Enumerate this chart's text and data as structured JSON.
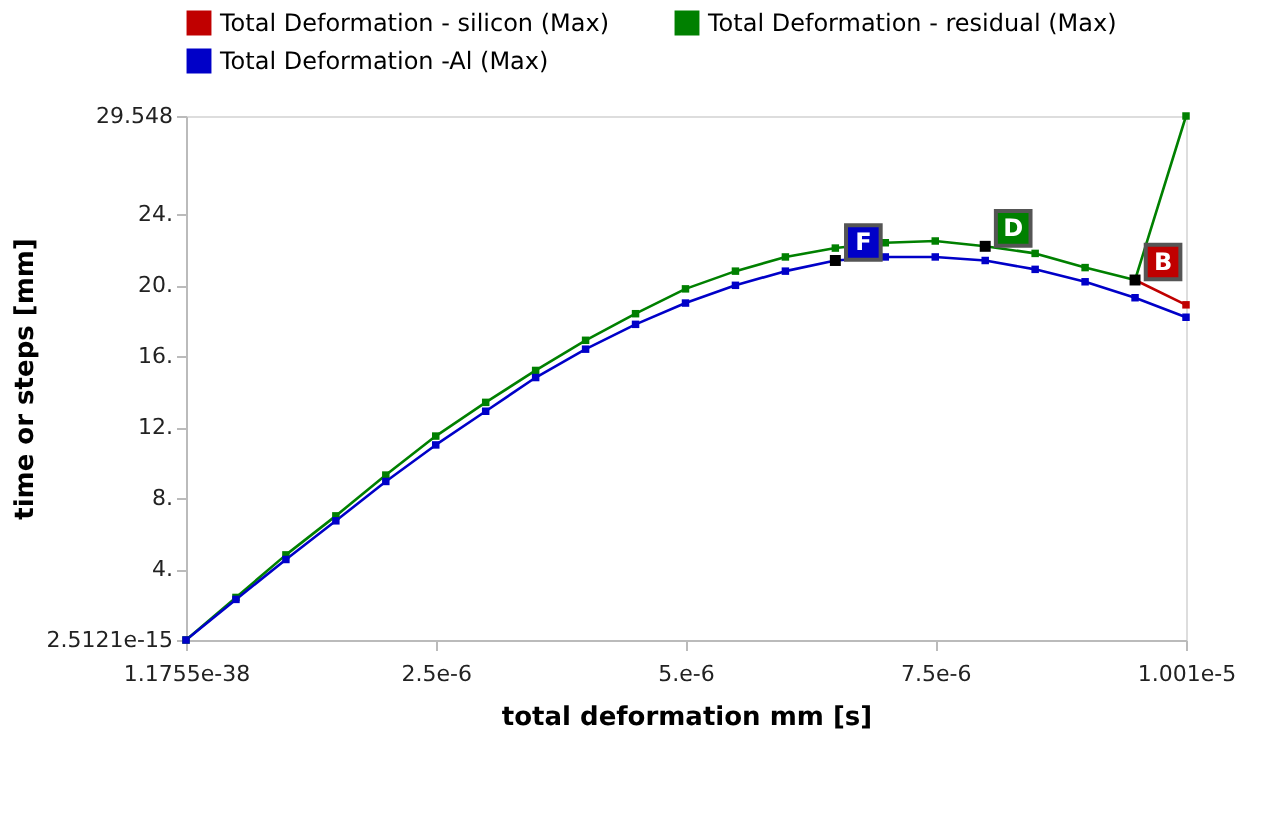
{
  "chart_data": {
    "type": "line",
    "xlabel": "total deformation mm [s]",
    "ylabel": "time or steps [mm]",
    "x": [
      1.1755e-38,
      5e-07,
      1e-06,
      1.5e-06,
      2e-06,
      2.5e-06,
      3e-06,
      3.5e-06,
      4e-06,
      4.5e-06,
      5e-06,
      5.5e-06,
      6e-06,
      6.5e-06,
      7e-06,
      7.5e-06,
      8e-06,
      8.5e-06,
      9e-06,
      9.5e-06,
      1.001e-05
    ],
    "series": [
      {
        "name": "Total Deformation - silicon (Max)",
        "color": "#c00000",
        "values": [
          null,
          null,
          null,
          null,
          null,
          null,
          null,
          null,
          null,
          null,
          null,
          null,
          null,
          null,
          null,
          null,
          null,
          null,
          null,
          20.3,
          18.9
        ]
      },
      {
        "name": "Total Deformation - residual (Max)",
        "color": "#008000",
        "values": [
          2.5121e-15,
          2.4,
          4.8,
          7.0,
          9.3,
          11.5,
          13.4,
          15.2,
          16.9,
          18.4,
          19.8,
          20.8,
          21.6,
          22.1,
          22.4,
          22.5,
          22.2,
          21.8,
          21.0,
          20.3,
          29.548
        ]
      },
      {
        "name": "Total Deformation -Al (Max)",
        "color": "#0000c8",
        "values": [
          2.5121e-15,
          2.29,
          4.54,
          6.72,
          8.94,
          11.0,
          12.9,
          14.8,
          16.4,
          17.8,
          19.0,
          20.0,
          20.8,
          21.4,
          21.6,
          21.6,
          21.4,
          20.9,
          20.2,
          19.3,
          18.2
        ]
      }
    ],
    "annotations": [
      {
        "text": "B",
        "x": 9.5e-06,
        "y": 20.3
      },
      {
        "text": "D",
        "x": 8e-06,
        "y": 22.2
      },
      {
        "text": "F",
        "x": 6.5e-06,
        "y": 21.4
      }
    ],
    "xlim": [
      1.1755e-38,
      1.001e-05
    ],
    "xticks": [
      {
        "value": 1.1755e-38,
        "label": "1.1755e-38"
      },
      {
        "value": 2.5e-06,
        "label": "2.5e-6"
      },
      {
        "value": 5e-06,
        "label": "5.e-6"
      },
      {
        "value": 7.5e-06,
        "label": "7.5e-6"
      },
      {
        "value": 1.001e-05,
        "label": "1.001e-5"
      }
    ],
    "ylim": [
      2.5121e-15,
      29.548
    ],
    "yticks": [
      {
        "value": 2.5121e-15,
        "label": "2.5121e-15"
      },
      {
        "value": 4,
        "label": "4."
      },
      {
        "value": 8,
        "label": "8."
      },
      {
        "value": 12,
        "label": "12."
      },
      {
        "value": 16,
        "label": "16."
      },
      {
        "value": 20,
        "label": "20."
      },
      {
        "value": 24,
        "label": "24."
      },
      29.548
    ],
    "grid": false,
    "legend": "top",
    "marker": "square",
    "line_style": "solid"
  }
}
